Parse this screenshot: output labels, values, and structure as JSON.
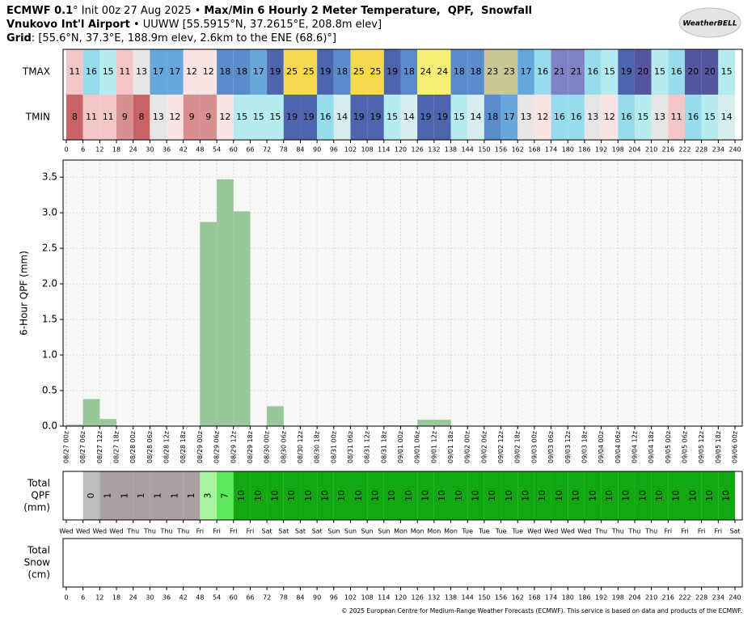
{
  "header": {
    "line1": [
      "ECMWF 0.1",
      "° Init 00z 27 Aug 2025 • ",
      "Max/Min 6 Hourly 2 Meter Temperature,  QPF,  Snowfall"
    ],
    "line2": [
      "Vnukovo Int'l Airport",
      " • UUWW [55.5915°N, 37.2615°E, 208.8m elev]"
    ],
    "line3": [
      "Grid",
      ": [55.6°N, 37.3°E, 188.9m elev, 2.6km to the ENE (68.6)°]"
    ]
  },
  "logo": "WeatherBELL",
  "footer": "© 2025 European Centre for Medium-Range Weather Forecasts (ECMWF). This service is based on data and products of the ECMWF.",
  "chart_data": [
    {
      "type": "heatrow",
      "xlim": [
        0,
        240
      ],
      "xticks": [
        0,
        6,
        12,
        18,
        24,
        30,
        36,
        42,
        48,
        54,
        60,
        66,
        72,
        78,
        84,
        90,
        96,
        102,
        108,
        114,
        120,
        126,
        132,
        138,
        144,
        150,
        156,
        162,
        168,
        174,
        180,
        186,
        192,
        198,
        204,
        210,
        216,
        222,
        228,
        234,
        240
      ],
      "palette": {
        "8": "#c86466",
        "9": "#d98f90",
        "11": "#f4c6c7",
        "12": "#fde4e4",
        "13": "#e6e6e6",
        "14": "#d6eeee",
        "15": "#b4ecf0",
        "16": "#96dcec",
        "17": "#66a8dc",
        "18": "#5a8ccc",
        "19": "#4e64ac",
        "20": "#5656a0",
        "21": "#8080c4",
        "23": "#c8c896",
        "24": "#f8f074",
        "25": "#f8d84c"
      },
      "series": [
        {
          "name": "TMAX",
          "values": [
            11,
            16,
            15,
            11,
            13,
            17,
            17,
            12,
            12,
            18,
            18,
            17,
            19,
            25,
            25,
            19,
            18,
            25,
            25,
            19,
            18,
            24,
            24,
            18,
            18,
            23,
            23,
            17,
            16,
            21,
            21,
            16,
            15,
            19,
            20,
            15,
            16,
            20,
            20,
            15
          ]
        },
        {
          "name": "TMIN",
          "values": [
            8,
            11,
            11,
            9,
            8,
            13,
            12,
            9,
            9,
            12,
            15,
            15,
            15,
            19,
            19,
            16,
            14,
            19,
            19,
            15,
            14,
            19,
            19,
            15,
            14,
            18,
            17,
            13,
            12,
            16,
            16,
            13,
            12,
            16,
            15,
            13,
            11,
            16,
            15,
            14
          ]
        }
      ]
    },
    {
      "type": "bar",
      "ylabel": "6-Hour QPF (mm)",
      "color": "#98c89a",
      "grid": true,
      "xlim": [
        0,
        240
      ],
      "xticks": [
        {
          "value": 0,
          "label": "08/27 00z"
        },
        {
          "value": 6,
          "label": "08/27 06z"
        },
        {
          "value": 12,
          "label": "08/27 12z"
        },
        {
          "value": 18,
          "label": "08/27 18z"
        },
        {
          "value": 24,
          "label": "08/28 00z"
        },
        {
          "value": 30,
          "label": "08/28 06z"
        },
        {
          "value": 36,
          "label": "08/28 12z"
        },
        {
          "value": 42,
          "label": "08/28 18z"
        },
        {
          "value": 48,
          "label": "08/29 00z"
        },
        {
          "value": 54,
          "label": "08/29 06z"
        },
        {
          "value": 60,
          "label": "08/29 12z"
        },
        {
          "value": 66,
          "label": "08/29 18z"
        },
        {
          "value": 72,
          "label": "08/30 00z"
        },
        {
          "value": 78,
          "label": "08/30 06z"
        },
        {
          "value": 84,
          "label": "08/30 12z"
        },
        {
          "value": 90,
          "label": "08/30 18z"
        },
        {
          "value": 96,
          "label": "08/31 00z"
        },
        {
          "value": 102,
          "label": "08/31 06z"
        },
        {
          "value": 108,
          "label": "08/31 12z"
        },
        {
          "value": 114,
          "label": "08/31 18z"
        },
        {
          "value": 120,
          "label": "09/01 00z"
        },
        {
          "value": 126,
          "label": "09/01 06z"
        },
        {
          "value": 132,
          "label": "09/01 12z"
        },
        {
          "value": 138,
          "label": "09/01 18z"
        },
        {
          "value": 144,
          "label": "09/02 00z"
        },
        {
          "value": 150,
          "label": "09/02 06z"
        },
        {
          "value": 156,
          "label": "09/02 12z"
        },
        {
          "value": 162,
          "label": "09/02 18z"
        },
        {
          "value": 168,
          "label": "09/03 00z"
        },
        {
          "value": 174,
          "label": "09/03 06z"
        },
        {
          "value": 180,
          "label": "09/03 12z"
        },
        {
          "value": 186,
          "label": "09/03 18z"
        },
        {
          "value": 192,
          "label": "09/04 00z"
        },
        {
          "value": 198,
          "label": "09/04 06z"
        },
        {
          "value": 204,
          "label": "09/04 12z"
        },
        {
          "value": 210,
          "label": "09/04 18z"
        },
        {
          "value": 216,
          "label": "09/05 00z"
        },
        {
          "value": 222,
          "label": "09/05 06z"
        },
        {
          "value": 228,
          "label": "09/05 12z"
        },
        {
          "value": 234,
          "label": "09/05 18z"
        },
        {
          "value": 240,
          "label": "09/06 00z"
        }
      ],
      "ylim": [
        0,
        3.74
      ],
      "yticks": [
        {
          "value": 0,
          "label": "0.0"
        },
        {
          "value": 0.5,
          "label": "0.5"
        },
        {
          "value": 1,
          "label": "1.0"
        },
        {
          "value": 1.5,
          "label": "1.5"
        },
        {
          "value": 2,
          "label": "2.0"
        },
        {
          "value": 2.5,
          "label": "2.5"
        },
        {
          "value": 3,
          "label": "3.0"
        },
        {
          "value": 3.5,
          "label": "3.5"
        }
      ],
      "values": [
        0.02,
        0.38,
        0.1,
        0,
        0,
        0.01,
        0,
        0,
        2.87,
        3.47,
        3.02,
        0,
        0.28,
        0,
        0,
        0,
        0,
        0,
        0,
        0.01,
        0.01,
        0.09,
        0.09,
        0,
        0,
        0,
        0,
        0,
        0,
        0,
        0,
        0,
        0,
        0.01,
        0,
        0,
        0,
        0,
        0,
        0
      ]
    },
    {
      "type": "totalrow",
      "label": [
        "Total",
        "QPF",
        "(mm)"
      ],
      "xlim": [
        0,
        240
      ],
      "palette": {
        "0": "#bdbdbd",
        "1": "#a9a1a1",
        "3": "#aaf5a0",
        "7": "#5de85a",
        "10": "#12a812"
      },
      "values": [
        null,
        0,
        1,
        1,
        1,
        1,
        1,
        1,
        3,
        7,
        10,
        10,
        10,
        10,
        10,
        10,
        10,
        10,
        10,
        10,
        10,
        10,
        10,
        10,
        10,
        10,
        10,
        10,
        10,
        10,
        10,
        10,
        10,
        10,
        10,
        10,
        10,
        10,
        10,
        10
      ],
      "xticks": [
        {
          "value": 0,
          "label": "Wed"
        },
        {
          "value": 6,
          "label": "Wed"
        },
        {
          "value": 12,
          "label": "Wed"
        },
        {
          "value": 18,
          "label": "Wed"
        },
        {
          "value": 24,
          "label": "Thu"
        },
        {
          "value": 30,
          "label": "Thu"
        },
        {
          "value": 36,
          "label": "Thu"
        },
        {
          "value": 42,
          "label": "Thu"
        },
        {
          "value": 48,
          "label": "Fri"
        },
        {
          "value": 54,
          "label": "Fri"
        },
        {
          "value": 60,
          "label": "Fri"
        },
        {
          "value": 66,
          "label": "Fri"
        },
        {
          "value": 72,
          "label": "Sat"
        },
        {
          "value": 78,
          "label": "Sat"
        },
        {
          "value": 84,
          "label": "Sat"
        },
        {
          "value": 90,
          "label": "Sat"
        },
        {
          "value": 96,
          "label": "Sun"
        },
        {
          "value": 102,
          "label": "Sun"
        },
        {
          "value": 108,
          "label": "Sun"
        },
        {
          "value": 114,
          "label": "Sun"
        },
        {
          "value": 120,
          "label": "Mon"
        },
        {
          "value": 126,
          "label": "Mon"
        },
        {
          "value": 132,
          "label": "Mon"
        },
        {
          "value": 138,
          "label": "Mon"
        },
        {
          "value": 144,
          "label": "Tue"
        },
        {
          "value": 150,
          "label": "Tue"
        },
        {
          "value": 156,
          "label": "Tue"
        },
        {
          "value": 162,
          "label": "Tue"
        },
        {
          "value": 168,
          "label": "Wed"
        },
        {
          "value": 174,
          "label": "Wed"
        },
        {
          "value": 180,
          "label": "Wed"
        },
        {
          "value": 186,
          "label": "Wed"
        },
        {
          "value": 192,
          "label": "Thu"
        },
        {
          "value": 198,
          "label": "Thu"
        },
        {
          "value": 204,
          "label": "Thu"
        },
        {
          "value": 210,
          "label": "Thu"
        },
        {
          "value": 216,
          "label": "Fri"
        },
        {
          "value": 222,
          "label": "Fri"
        },
        {
          "value": 228,
          "label": "Fri"
        },
        {
          "value": 234,
          "label": "Fri"
        },
        {
          "value": 240,
          "label": "Sat"
        }
      ]
    },
    {
      "type": "snowrow",
      "label": [
        "Total",
        "Snow",
        "(cm)"
      ],
      "xlim": [
        0,
        240
      ],
      "xticks": [
        0,
        6,
        12,
        18,
        24,
        30,
        36,
        42,
        48,
        54,
        60,
        66,
        72,
        78,
        84,
        90,
        96,
        102,
        108,
        114,
        120,
        126,
        132,
        138,
        144,
        150,
        156,
        162,
        168,
        174,
        180,
        186,
        192,
        198,
        204,
        210,
        216,
        222,
        228,
        234,
        240
      ]
    }
  ]
}
